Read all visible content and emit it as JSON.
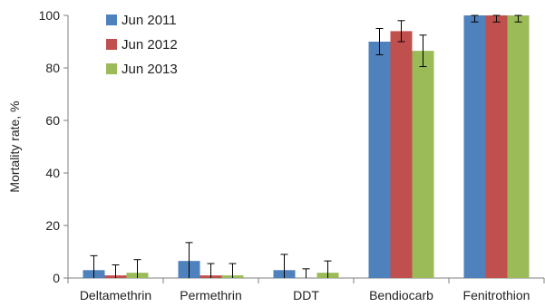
{
  "chart_data": {
    "type": "bar",
    "ylabel": "Mortality rate, %",
    "xlabel": "",
    "ylim": [
      0,
      100
    ],
    "yticks": [
      0,
      20,
      40,
      60,
      80,
      100
    ],
    "categories": [
      "Deltamethrin",
      "Permethrin",
      "DDT",
      "Bendiocarb",
      "Fenitrothion"
    ],
    "series": [
      {
        "name": "Jun 2011",
        "color": "#4f81bd",
        "values": [
          3,
          6.5,
          3,
          90,
          100
        ],
        "errors": [
          5.5,
          7,
          6,
          5,
          2.5
        ]
      },
      {
        "name": "Jun 2012",
        "color": "#c0504d",
        "values": [
          1,
          1,
          0,
          94,
          100
        ],
        "errors": [
          4,
          4.5,
          3.5,
          4,
          2.5
        ]
      },
      {
        "name": "Jun 2013",
        "color": "#9bbb59",
        "values": [
          2,
          1,
          2,
          86.5,
          100
        ],
        "errors": [
          5,
          4.5,
          4.5,
          6,
          2.5
        ]
      }
    ],
    "grid": false,
    "legend_position": "top-left"
  }
}
